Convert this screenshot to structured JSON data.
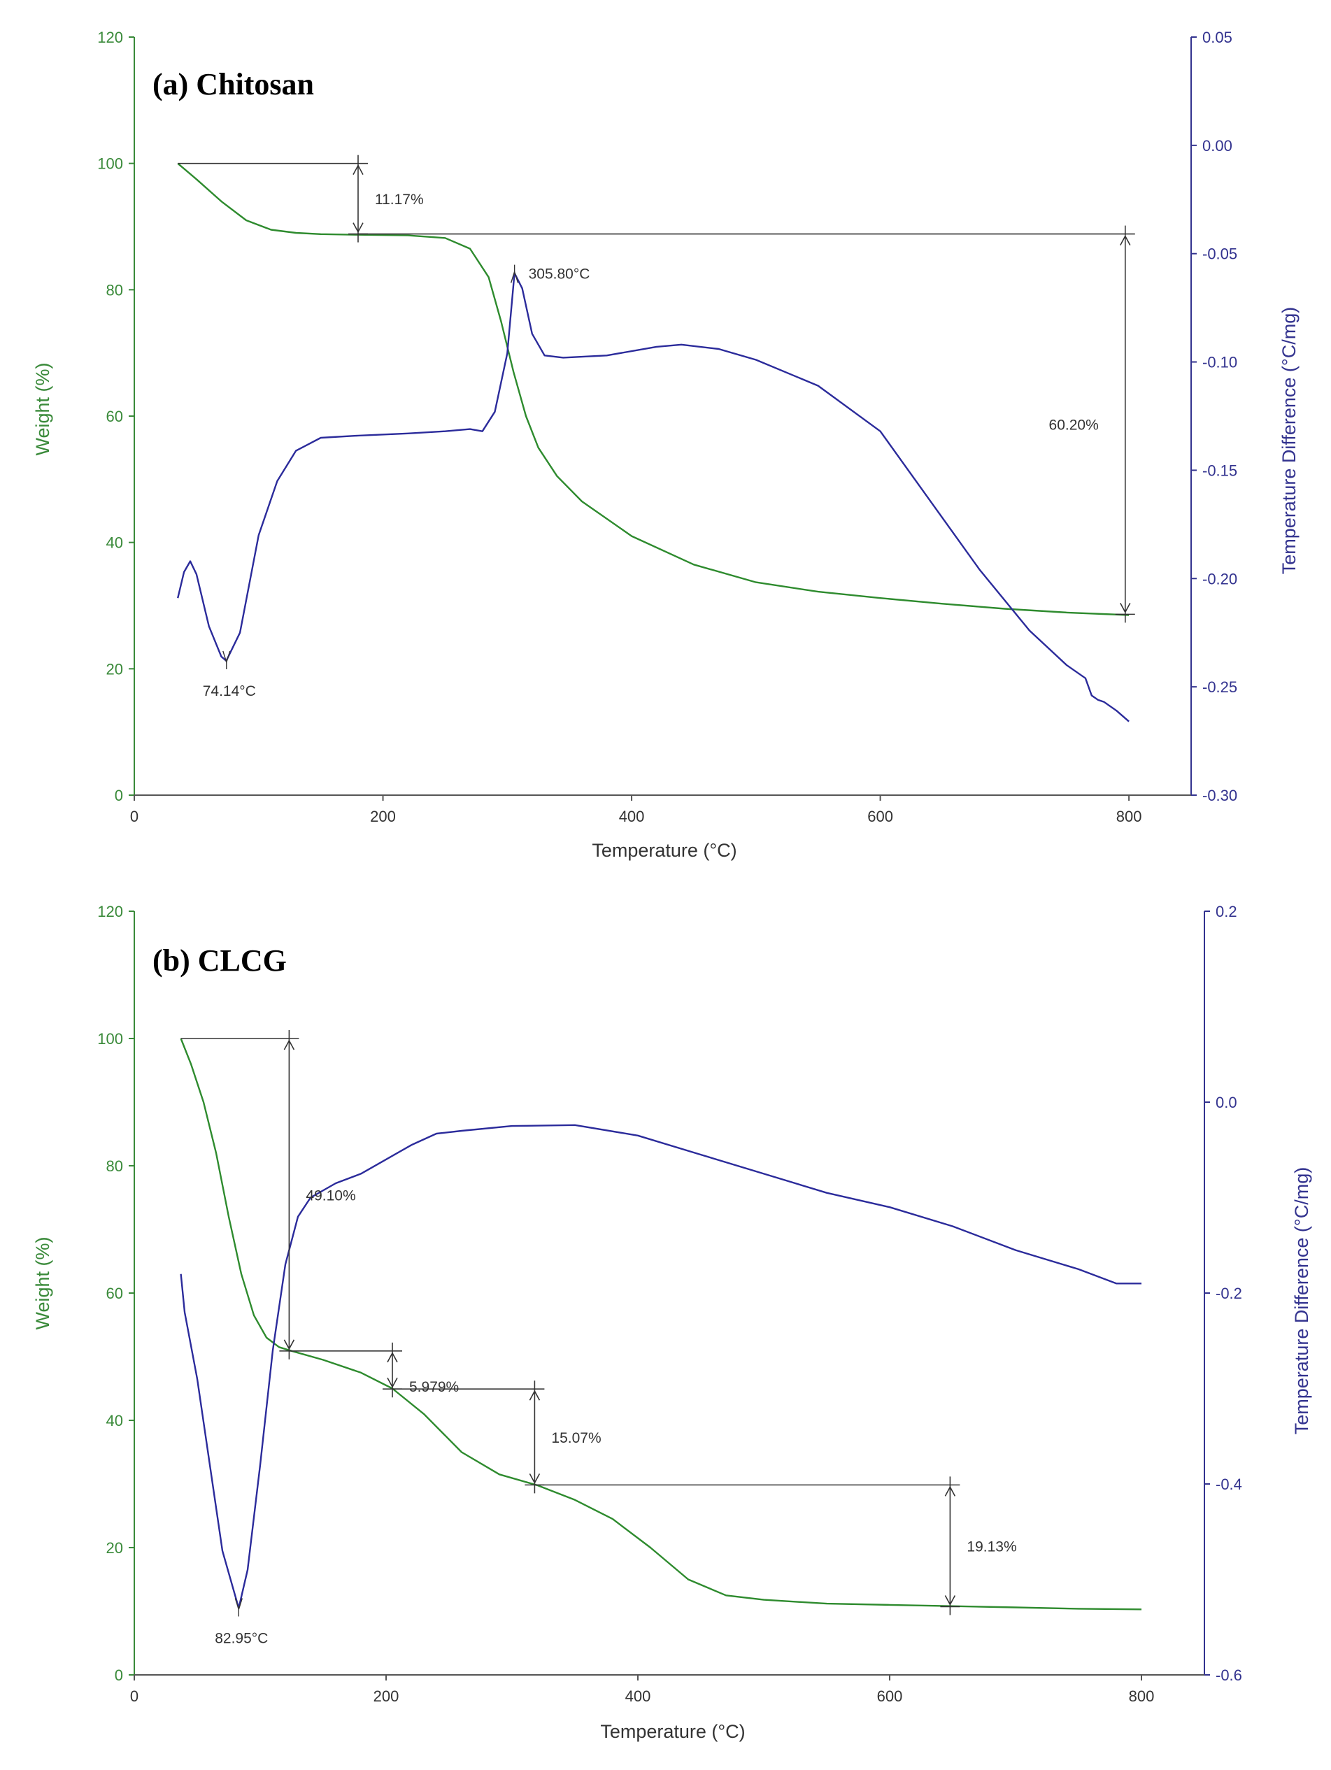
{
  "colors": {
    "weight": "#2e8b2e",
    "dta": "#2b2b9b",
    "annotation": "#333333",
    "frame_green": "#3a8a3a",
    "frame_blue": "#33338f"
  },
  "chart_data": [
    {
      "id": "a",
      "type": "line",
      "title": "(a) Chitosan",
      "xlabel": "Temperature (°C)",
      "ylabel": "Weight (%)",
      "y2label": "Temperature Difference (°C/mg)",
      "xlim": [
        0,
        850
      ],
      "ylim": [
        0,
        120
      ],
      "y2lim": [
        -0.3,
        0.05
      ],
      "xticks": [
        0,
        200,
        400,
        600,
        800
      ],
      "xtick_labels": [
        "0",
        "200",
        "400",
        "600",
        "800"
      ],
      "yticks": [
        0,
        20,
        40,
        60,
        80,
        100,
        120
      ],
      "ytick_labels": [
        "0",
        "20",
        "40",
        "60",
        "80",
        "100",
        "120"
      ],
      "y2ticks": [
        -0.3,
        -0.25,
        -0.2,
        -0.15,
        -0.1,
        -0.05,
        0.0,
        0.05
      ],
      "y2tick_labels": [
        "-0.30",
        "-0.25",
        "-0.20",
        "-0.15",
        "-0.10",
        "-0.05",
        "0.00",
        "0.05"
      ],
      "series": [
        {
          "name": "Weight",
          "axis": "left",
          "x": [
            35,
            50,
            70,
            90,
            110,
            130,
            150,
            180,
            220,
            250,
            270,
            285,
            295,
            305,
            315,
            325,
            340,
            360,
            400,
            450,
            500,
            550,
            600,
            650,
            700,
            750,
            800
          ],
          "y": [
            100,
            97.5,
            94,
            91,
            89.5,
            89,
            88.8,
            88.7,
            88.6,
            88.2,
            86.5,
            82,
            75,
            67,
            60,
            55,
            50.5,
            46.5,
            41,
            36.5,
            33.7,
            32.2,
            31.2,
            30.3,
            29.5,
            28.9,
            28.5
          ]
        },
        {
          "name": "DTA",
          "axis": "right",
          "x": [
            35,
            40,
            45,
            50,
            60,
            70,
            74,
            85,
            100,
            115,
            130,
            150,
            180,
            220,
            250,
            270,
            280,
            290,
            300,
            305.8,
            312,
            320,
            330,
            345,
            380,
            420,
            440,
            470,
            500,
            550,
            600,
            640,
            680,
            720,
            750,
            765,
            770,
            775,
            780,
            790,
            800
          ],
          "y": [
            -0.209,
            -0.197,
            -0.192,
            -0.198,
            -0.222,
            -0.236,
            -0.238,
            -0.225,
            -0.18,
            -0.155,
            -0.141,
            -0.135,
            -0.134,
            -0.133,
            -0.132,
            -0.131,
            -0.132,
            -0.123,
            -0.096,
            -0.059,
            -0.066,
            -0.087,
            -0.097,
            -0.098,
            -0.097,
            -0.093,
            -0.092,
            -0.094,
            -0.099,
            -0.111,
            -0.132,
            -0.164,
            -0.196,
            -0.224,
            -0.24,
            -0.246,
            -0.254,
            -0.256,
            -0.257,
            -0.261,
            -0.266
          ]
        }
      ],
      "annotations": [
        {
          "label": "11.17%",
          "type": "step",
          "x": 180,
          "y_top": 100,
          "y_bottom": 88.83,
          "x_start": 35
        },
        {
          "label": "60.20%",
          "type": "step",
          "x": 797,
          "y_top": 88.83,
          "y_bottom": 28.63,
          "x_start": 180
        },
        {
          "label": "74.14°C",
          "type": "peak",
          "x": 74.14,
          "y": -0.238
        },
        {
          "label": "305.80°C",
          "type": "peak",
          "x": 305.8,
          "y": -0.059
        }
      ]
    },
    {
      "id": "b",
      "type": "line",
      "title": "(b) CLCG",
      "xlabel": "Temperature (°C)",
      "ylabel": "Weight (%)",
      "y2label": "Temperature Difference (°C/mg)",
      "xlim": [
        0,
        850
      ],
      "ylim": [
        0,
        120
      ],
      "y2lim": [
        -0.6,
        0.2
      ],
      "xticks": [
        0,
        200,
        400,
        600,
        800
      ],
      "xtick_labels": [
        "0",
        "200",
        "400",
        "600",
        "800"
      ],
      "yticks": [
        0,
        20,
        40,
        60,
        80,
        100,
        120
      ],
      "ytick_labels": [
        "0",
        "20",
        "40",
        "60",
        "80",
        "100",
        "120"
      ],
      "y2ticks": [
        -0.6,
        -0.4,
        -0.2,
        0.0,
        0.2
      ],
      "y2tick_labels": [
        "-0.6",
        "-0.4",
        "-0.2",
        "0.0",
        "0.2"
      ],
      "series": [
        {
          "name": "Weight",
          "axis": "left",
          "x": [
            37,
            45,
            55,
            65,
            75,
            85,
            95,
            105,
            115,
            125,
            150,
            180,
            205,
            230,
            260,
            290,
            320,
            350,
            380,
            410,
            440,
            470,
            500,
            550,
            600,
            650,
            700,
            750,
            800
          ],
          "y": [
            100,
            96,
            90,
            82,
            72,
            63,
            56.5,
            53,
            51.5,
            50.9,
            49.5,
            47.5,
            45,
            41,
            35,
            31.5,
            29.8,
            27.5,
            24.5,
            20,
            15,
            12.5,
            11.8,
            11.2,
            11,
            10.8,
            10.6,
            10.4,
            10.3
          ]
        },
        {
          "name": "DTA",
          "axis": "right",
          "x": [
            37,
            40,
            50,
            60,
            70,
            82.95,
            90,
            100,
            110,
            120,
            130,
            140,
            160,
            180,
            200,
            220,
            240,
            260,
            300,
            350,
            400,
            450,
            500,
            550,
            600,
            650,
            700,
            750,
            780,
            800
          ],
          "y": [
            -0.18,
            -0.22,
            -0.29,
            -0.38,
            -0.47,
            -0.53,
            -0.49,
            -0.38,
            -0.26,
            -0.17,
            -0.12,
            -0.1,
            -0.085,
            -0.075,
            -0.06,
            -0.045,
            -0.033,
            -0.03,
            -0.025,
            -0.024,
            -0.035,
            -0.055,
            -0.075,
            -0.095,
            -0.11,
            -0.13,
            -0.155,
            -0.175,
            -0.19,
            -0.19
          ]
        }
      ],
      "annotations": [
        {
          "label": "49.10%",
          "type": "step",
          "x": 123,
          "y_top": 100,
          "y_bottom": 50.9,
          "x_start": 37
        },
        {
          "label": "5.979%",
          "type": "step",
          "x": 205,
          "y_top": 50.9,
          "y_bottom": 44.92,
          "x_start": 123
        },
        {
          "label": "15.07%",
          "type": "step",
          "x": 318,
          "y_top": 44.92,
          "y_bottom": 29.85,
          "x_start": 205
        },
        {
          "label": "19.13%",
          "type": "step",
          "x": 648,
          "y_top": 29.85,
          "y_bottom": 10.72,
          "x_start": 318
        },
        {
          "label": "82.95°C",
          "type": "peak",
          "x": 82.95,
          "y": -0.53
        }
      ]
    }
  ]
}
